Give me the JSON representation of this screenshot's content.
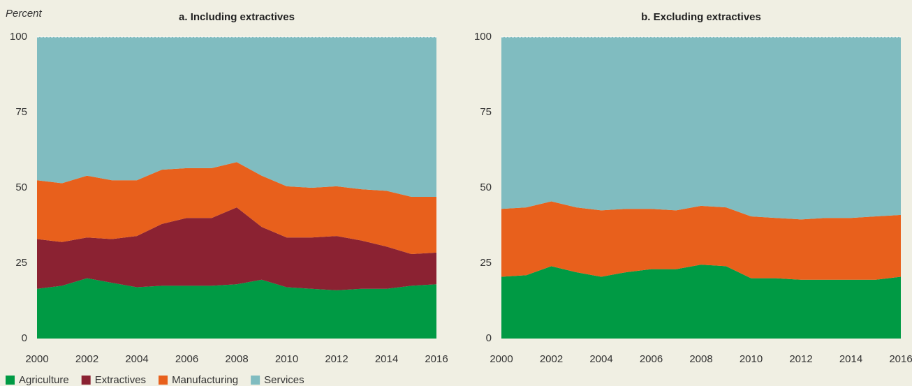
{
  "chart_data": [
    {
      "type": "stacked_area",
      "title": "a. Including extractives",
      "ylabel": "Percent",
      "x": [
        2000,
        2001,
        2002,
        2003,
        2004,
        2005,
        2006,
        2007,
        2008,
        2009,
        2010,
        2011,
        2012,
        2013,
        2014,
        2015,
        2016
      ],
      "xlim": [
        2000,
        2016
      ],
      "xticks": [
        2000,
        2002,
        2004,
        2006,
        2008,
        2010,
        2012,
        2014,
        2016
      ],
      "ylim": [
        0,
        100
      ],
      "yticks": [
        0,
        25,
        50,
        75,
        100
      ],
      "series": [
        {
          "name": "Agriculture",
          "color": "#009a44",
          "values": [
            16.5,
            17.5,
            20,
            18.5,
            17,
            17.5,
            17.5,
            17.5,
            18,
            19.5,
            17,
            16.5,
            16,
            16.5,
            16.5,
            17.5,
            18
          ]
        },
        {
          "name": "Extractives",
          "color": "#8b2232",
          "values": [
            16.5,
            14.5,
            13.5,
            14.5,
            17,
            20.5,
            22.5,
            22.5,
            25.5,
            17.5,
            16.5,
            17,
            18,
            16,
            14,
            10.5,
            10.5
          ]
        },
        {
          "name": "Manufacturing",
          "color": "#e8601c",
          "values": [
            19.5,
            19.5,
            20.5,
            19.5,
            18.5,
            18,
            16.5,
            16.5,
            15,
            17,
            17,
            16.5,
            16.5,
            17,
            18.5,
            19,
            18.5
          ]
        },
        {
          "name": "Services",
          "color": "#80bcc0",
          "values": [
            47.5,
            48.5,
            46,
            47.5,
            47.5,
            44,
            43.5,
            43.5,
            41.5,
            46,
            49.5,
            50,
            49.5,
            50.5,
            51,
            53,
            53
          ]
        }
      ]
    },
    {
      "type": "stacked_area",
      "title": "b. Excluding extractives",
      "x": [
        2000,
        2001,
        2002,
        2003,
        2004,
        2005,
        2006,
        2007,
        2008,
        2009,
        2010,
        2011,
        2012,
        2013,
        2014,
        2015,
        2016
      ],
      "xlim": [
        2000,
        2016
      ],
      "xticks": [
        2000,
        2002,
        2004,
        2006,
        2008,
        2010,
        2012,
        2014,
        2016
      ],
      "ylim": [
        0,
        100
      ],
      "yticks": [
        0,
        25,
        50,
        75,
        100
      ],
      "series": [
        {
          "name": "Agriculture",
          "color": "#009a44",
          "values": [
            20.5,
            21,
            24,
            22,
            20.5,
            22,
            23,
            23,
            24.5,
            24,
            20,
            20,
            19.5,
            19.5,
            19.5,
            19.5,
            20.5
          ]
        },
        {
          "name": "Manufacturing",
          "color": "#e8601c",
          "values": [
            22.5,
            22.5,
            21.5,
            21.5,
            22,
            21,
            20,
            19.5,
            19.5,
            19.5,
            20.5,
            20,
            20,
            20.5,
            20.5,
            21,
            20.5
          ]
        },
        {
          "name": "Services",
          "color": "#80bcc0",
          "values": [
            57,
            56.5,
            54.5,
            56.5,
            57.5,
            57,
            57,
            57.5,
            56,
            56.5,
            59.5,
            60,
            60.5,
            60,
            60,
            59.5,
            59
          ]
        }
      ]
    }
  ]
}
